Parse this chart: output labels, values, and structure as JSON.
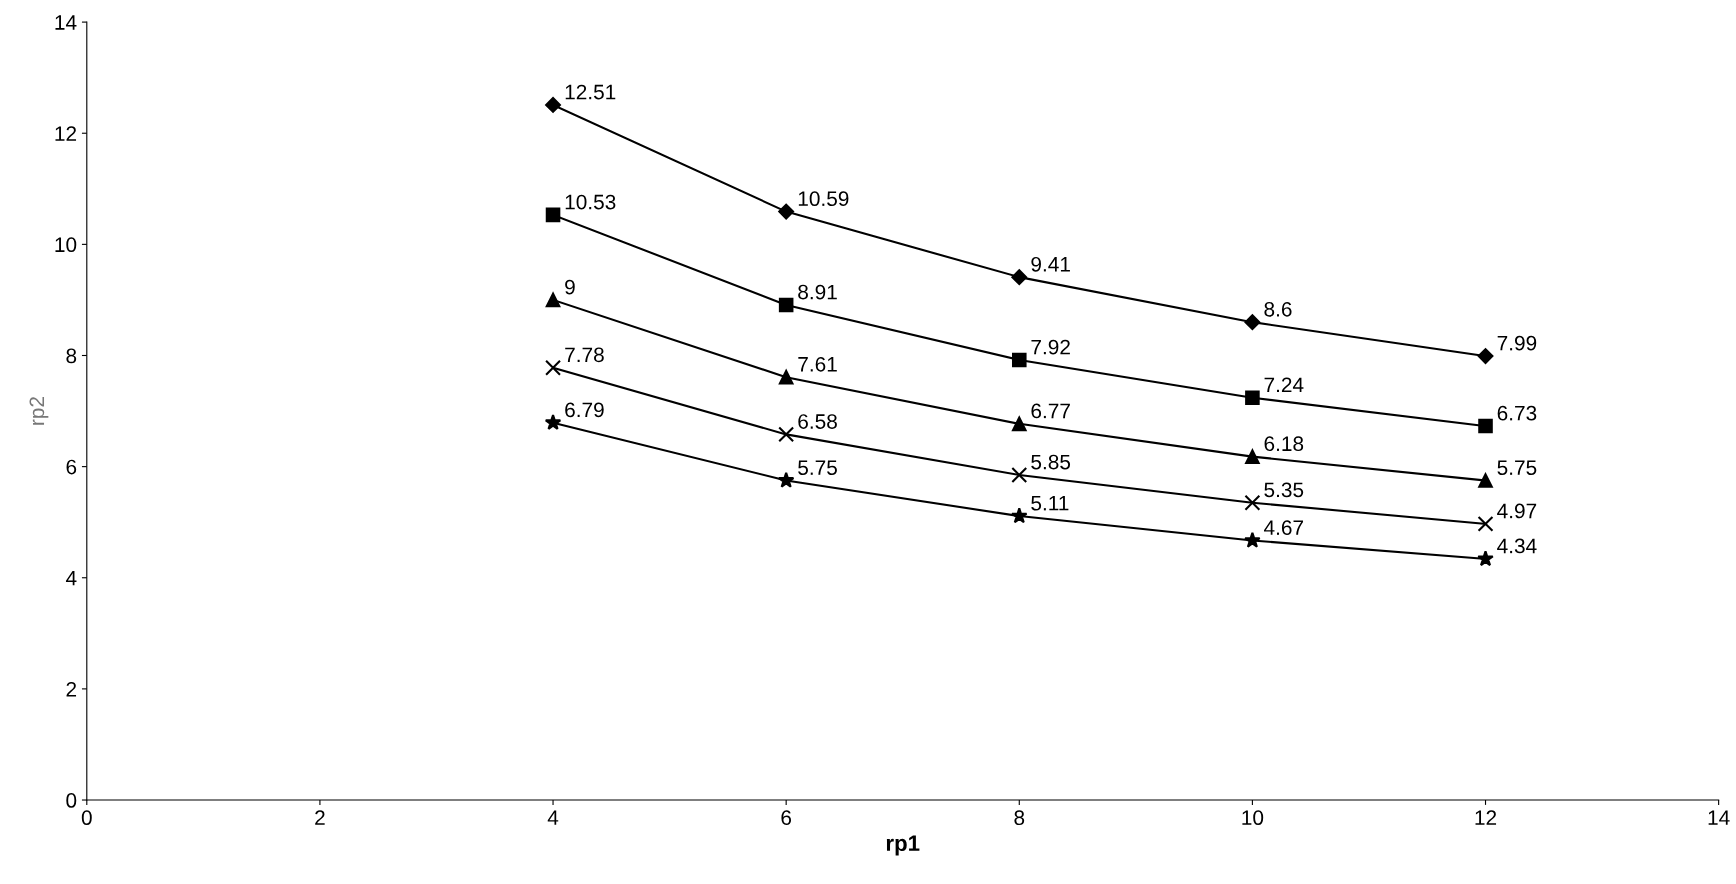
{
  "chart_data": {
    "type": "line",
    "xlabel": "rp1",
    "ylabel": "rp2",
    "x": [
      4,
      6,
      8,
      10,
      12
    ],
    "series": [
      {
        "color": "#000000",
        "marker": "diamond",
        "values": [
          12.51,
          10.59,
          9.41,
          8.6,
          7.99
        ]
      },
      {
        "color": "#000000",
        "marker": "square",
        "values": [
          10.53,
          8.91,
          7.92,
          7.24,
          6.73
        ]
      },
      {
        "color": "#000000",
        "marker": "triangle",
        "values": [
          9,
          7.61,
          6.77,
          6.18,
          5.75
        ]
      },
      {
        "color": "#000000",
        "marker": "cross",
        "values": [
          7.78,
          6.58,
          5.85,
          5.35,
          4.97
        ]
      },
      {
        "color": "#000000",
        "marker": "star",
        "values": [
          6.79,
          5.75,
          5.11,
          4.67,
          4.34
        ]
      }
    ],
    "data_labels": true,
    "grid": false,
    "legend": false,
    "xlim": [
      0,
      14
    ],
    "xticks": [
      0,
      2,
      4,
      6,
      8,
      10,
      12,
      14
    ],
    "ylim": [
      0,
      14
    ],
    "yticks": [
      0,
      2,
      4,
      6,
      8,
      10,
      12,
      14
    ]
  }
}
